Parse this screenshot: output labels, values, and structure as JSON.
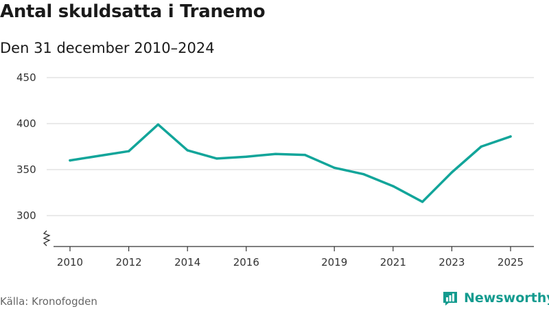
{
  "header": {
    "title": "Antal skuldsatta i Tranemo",
    "subtitle": "Den 31 december 2010–2024"
  },
  "footer": {
    "source": "Källa: Kronofogden",
    "brand": "Newsworthy",
    "brand_icon": "bar-chart-icon",
    "brand_color": "#149b8f"
  },
  "chart_data": {
    "type": "line",
    "title": "Antal skuldsatta i Tranemo",
    "subtitle": "Den 31 december 2010–2024",
    "xlabel": "",
    "ylabel": "",
    "x_ticks": [
      2010,
      2012,
      2014,
      2016,
      2019,
      2021,
      2023,
      2025
    ],
    "x_tick_labels": [
      "2010",
      "2012",
      "2014",
      "2016",
      "2019",
      "2021",
      "2023",
      "2025"
    ],
    "y_ticks": [
      300,
      350,
      400,
      450
    ],
    "y_tick_labels": [
      "300",
      "350",
      "400",
      "450"
    ],
    "ylim": [
      300,
      450
    ],
    "y_axis_break": true,
    "grid": true,
    "line_color": "#12a59a",
    "series": [
      {
        "x": [
          2010,
          2011,
          2012,
          2013,
          2014,
          2015,
          2016,
          2017,
          2018,
          2019,
          2020,
          2021,
          2022,
          2023,
          2024,
          2025
        ],
        "values": [
          360,
          365,
          370,
          399,
          371,
          362,
          364,
          367,
          366,
          352,
          345,
          332,
          315,
          347,
          375,
          386
        ]
      }
    ]
  }
}
